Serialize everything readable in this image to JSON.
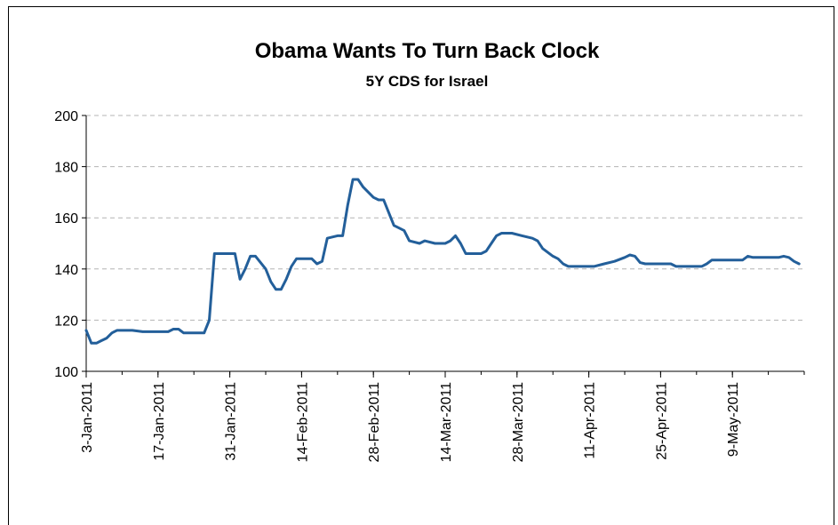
{
  "chart_data": {
    "type": "line",
    "title": "Obama Wants To Turn Back Clock",
    "subtitle": "5Y CDS for Israel",
    "ylim": [
      100,
      200
    ],
    "yticks": [
      100,
      120,
      140,
      160,
      180,
      200
    ],
    "x_range": [
      "2011-01-03",
      "2011-05-23"
    ],
    "xtick_labels": [
      "3-Jan-2011",
      "17-Jan-2011",
      "31-Jan-2011",
      "14-Feb-2011",
      "28-Feb-2011",
      "14-Mar-2011",
      "28-Mar-2011",
      "11-Apr-2011",
      "25-Apr-2011",
      "9-May-2011"
    ],
    "xtick_dates": [
      "2011-01-03",
      "2011-01-17",
      "2011-01-31",
      "2011-02-14",
      "2011-02-28",
      "2011-03-14",
      "2011-03-28",
      "2011-04-11",
      "2011-04-25",
      "2011-05-09"
    ],
    "grid": "horizontal dashed",
    "series_color": "#235f9a",
    "series": [
      {
        "points": [
          [
            "2011-01-03",
            116
          ],
          [
            "2011-01-04",
            111
          ],
          [
            "2011-01-05",
            111
          ],
          [
            "2011-01-06",
            112
          ],
          [
            "2011-01-07",
            113
          ],
          [
            "2011-01-08",
            115
          ],
          [
            "2011-01-09",
            116
          ],
          [
            "2011-01-12",
            116
          ],
          [
            "2011-01-14",
            115.5
          ],
          [
            "2011-01-17",
            115.5
          ],
          [
            "2011-01-19",
            115.5
          ],
          [
            "2011-01-20",
            116.5
          ],
          [
            "2011-01-21",
            116.5
          ],
          [
            "2011-01-22",
            115
          ],
          [
            "2011-01-26",
            115
          ],
          [
            "2011-01-27",
            120
          ],
          [
            "2011-01-28",
            146
          ],
          [
            "2011-02-01",
            146
          ],
          [
            "2011-02-02",
            136
          ],
          [
            "2011-02-03",
            140
          ],
          [
            "2011-02-04",
            145
          ],
          [
            "2011-02-05",
            145
          ],
          [
            "2011-02-07",
            140
          ],
          [
            "2011-02-08",
            135
          ],
          [
            "2011-02-09",
            132
          ],
          [
            "2011-02-10",
            132
          ],
          [
            "2011-02-11",
            136
          ],
          [
            "2011-02-12",
            141
          ],
          [
            "2011-02-13",
            144
          ],
          [
            "2011-02-16",
            144
          ],
          [
            "2011-02-17",
            142
          ],
          [
            "2011-02-18",
            143
          ],
          [
            "2011-02-19",
            152
          ],
          [
            "2011-02-21",
            153
          ],
          [
            "2011-02-22",
            153
          ],
          [
            "2011-02-23",
            165
          ],
          [
            "2011-02-24",
            175
          ],
          [
            "2011-02-25",
            175
          ],
          [
            "2011-02-26",
            172
          ],
          [
            "2011-02-28",
            168
          ],
          [
            "2011-03-01",
            167
          ],
          [
            "2011-03-02",
            167
          ],
          [
            "2011-03-03",
            162
          ],
          [
            "2011-03-04",
            157
          ],
          [
            "2011-03-05",
            156
          ],
          [
            "2011-03-06",
            155
          ],
          [
            "2011-03-07",
            151
          ],
          [
            "2011-03-09",
            150
          ],
          [
            "2011-03-10",
            151
          ],
          [
            "2011-03-12",
            150
          ],
          [
            "2011-03-14",
            150
          ],
          [
            "2011-03-15",
            151
          ],
          [
            "2011-03-16",
            153
          ],
          [
            "2011-03-17",
            150
          ],
          [
            "2011-03-18",
            146
          ],
          [
            "2011-03-21",
            146
          ],
          [
            "2011-03-22",
            147
          ],
          [
            "2011-03-23",
            150
          ],
          [
            "2011-03-24",
            153
          ],
          [
            "2011-03-25",
            154
          ],
          [
            "2011-03-27",
            154
          ],
          [
            "2011-03-29",
            153
          ],
          [
            "2011-03-31",
            152
          ],
          [
            "2011-04-01",
            151
          ],
          [
            "2011-04-02",
            148
          ],
          [
            "2011-04-04",
            145
          ],
          [
            "2011-04-05",
            144
          ],
          [
            "2011-04-06",
            142
          ],
          [
            "2011-04-07",
            141
          ],
          [
            "2011-04-12",
            141
          ],
          [
            "2011-04-14",
            142
          ],
          [
            "2011-04-16",
            143
          ],
          [
            "2011-04-18",
            144.5
          ],
          [
            "2011-04-19",
            145.5
          ],
          [
            "2011-04-20",
            145
          ],
          [
            "2011-04-21",
            142.5
          ],
          [
            "2011-04-22",
            142
          ],
          [
            "2011-04-27",
            142
          ],
          [
            "2011-04-28",
            141
          ],
          [
            "2011-05-03",
            141
          ],
          [
            "2011-05-04",
            142
          ],
          [
            "2011-05-05",
            143.5
          ],
          [
            "2011-05-11",
            143.5
          ],
          [
            "2011-05-12",
            145
          ],
          [
            "2011-05-13",
            144.5
          ],
          [
            "2011-05-18",
            144.5
          ],
          [
            "2011-05-19",
            145
          ],
          [
            "2011-05-20",
            144.5
          ],
          [
            "2011-05-21",
            143
          ],
          [
            "2011-05-22",
            142
          ]
        ]
      }
    ]
  }
}
